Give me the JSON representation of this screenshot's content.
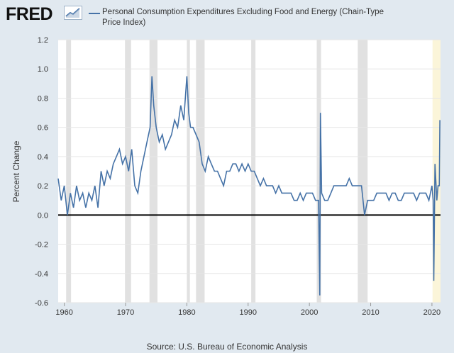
{
  "brand": {
    "logo_text": "FRED",
    "logo_icon": "chart-icon"
  },
  "legend": {
    "label": "Personal Consumption Expenditures Excluding Food and Energy (Chain-Type Price Index)",
    "color": "#4572a7"
  },
  "source": "Source: U.S. Bureau of Economic Analysis",
  "chart_data": {
    "type": "line",
    "title": "Personal Consumption Expenditures Excluding Food and Energy (Chain-Type Price Index)",
    "xlabel": "",
    "ylabel": "Percent Change",
    "xlim": [
      1959.0,
      2021.4
    ],
    "ylim": [
      -0.6,
      1.2
    ],
    "x_ticks": [
      1960,
      1970,
      1980,
      1990,
      2000,
      2010,
      2020
    ],
    "y_ticks": [
      -0.6,
      -0.4,
      -0.2,
      0.0,
      0.2,
      0.4,
      0.6,
      0.8,
      1.0,
      1.2
    ],
    "y_tick_labels": [
      "-0.6",
      "-0.4",
      "-0.2",
      "0.0",
      "0.2",
      "0.4",
      "0.6",
      "0.8",
      "1.0",
      "1.2"
    ],
    "zero_line": true,
    "recessions": [
      [
        1960.3,
        1961.1
      ],
      [
        1969.9,
        1970.9
      ],
      [
        1973.9,
        1975.2
      ],
      [
        1980.0,
        1980.5
      ],
      [
        1981.5,
        1982.9
      ],
      [
        1990.5,
        1991.2
      ],
      [
        2001.2,
        2001.9
      ],
      [
        2007.9,
        2009.5
      ]
    ],
    "forecast_band": [
      2020.1,
      2021.4
    ],
    "series": [
      {
        "name": "Personal Consumption Expenditures Excluding Food and Energy (Chain-Type Price Index)",
        "color": "#4572a7",
        "x": [
          1959.0,
          1959.5,
          1960.0,
          1960.5,
          1961.0,
          1961.5,
          1962.0,
          1962.5,
          1963.0,
          1963.5,
          1964.0,
          1964.5,
          1965.0,
          1965.5,
          1966.0,
          1966.5,
          1967.0,
          1967.5,
          1968.0,
          1968.5,
          1969.0,
          1969.5,
          1970.0,
          1970.5,
          1971.0,
          1971.5,
          1972.0,
          1972.5,
          1973.0,
          1973.5,
          1974.0,
          1974.3,
          1974.6,
          1975.0,
          1975.5,
          1976.0,
          1976.5,
          1977.0,
          1977.5,
          1978.0,
          1978.5,
          1979.0,
          1979.5,
          1980.0,
          1980.3,
          1980.6,
          1981.0,
          1981.5,
          1982.0,
          1982.5,
          1983.0,
          1983.5,
          1984.0,
          1984.5,
          1985.0,
          1985.5,
          1986.0,
          1986.5,
          1987.0,
          1987.5,
          1988.0,
          1988.5,
          1989.0,
          1989.5,
          1990.0,
          1990.5,
          1991.0,
          1991.5,
          1992.0,
          1992.5,
          1993.0,
          1993.5,
          1994.0,
          1994.5,
          1995.0,
          1995.5,
          1996.0,
          1996.5,
          1997.0,
          1997.5,
          1998.0,
          1998.5,
          1999.0,
          1999.5,
          2000.0,
          2000.5,
          2001.0,
          2001.5,
          2001.7,
          2001.8,
          2002.0,
          2002.5,
          2003.0,
          2003.5,
          2004.0,
          2004.5,
          2005.0,
          2005.5,
          2006.0,
          2006.5,
          2007.0,
          2007.5,
          2008.0,
          2008.5,
          2009.0,
          2009.5,
          2010.0,
          2010.5,
          2011.0,
          2011.5,
          2012.0,
          2012.5,
          2013.0,
          2013.5,
          2014.0,
          2014.5,
          2015.0,
          2015.5,
          2016.0,
          2016.5,
          2017.0,
          2017.5,
          2018.0,
          2018.5,
          2019.0,
          2019.5,
          2020.0,
          2020.2,
          2020.3,
          2020.5,
          2020.8,
          2021.0,
          2021.2,
          2021.3
        ],
        "values": [
          0.25,
          0.1,
          0.2,
          0.0,
          0.15,
          0.05,
          0.2,
          0.1,
          0.15,
          0.05,
          0.15,
          0.1,
          0.2,
          0.05,
          0.3,
          0.2,
          0.3,
          0.25,
          0.35,
          0.4,
          0.45,
          0.35,
          0.4,
          0.3,
          0.45,
          0.2,
          0.15,
          0.3,
          0.4,
          0.5,
          0.6,
          0.95,
          0.75,
          0.6,
          0.5,
          0.55,
          0.45,
          0.5,
          0.55,
          0.65,
          0.6,
          0.75,
          0.65,
          0.95,
          0.7,
          0.6,
          0.6,
          0.55,
          0.5,
          0.35,
          0.3,
          0.4,
          0.35,
          0.3,
          0.3,
          0.25,
          0.2,
          0.3,
          0.3,
          0.35,
          0.35,
          0.3,
          0.35,
          0.3,
          0.35,
          0.3,
          0.3,
          0.25,
          0.2,
          0.25,
          0.2,
          0.2,
          0.2,
          0.15,
          0.2,
          0.15,
          0.15,
          0.15,
          0.15,
          0.1,
          0.1,
          0.15,
          0.1,
          0.15,
          0.15,
          0.15,
          0.1,
          0.1,
          -0.55,
          0.7,
          0.15,
          0.1,
          0.1,
          0.15,
          0.2,
          0.2,
          0.2,
          0.2,
          0.2,
          0.25,
          0.2,
          0.2,
          0.2,
          0.2,
          0.0,
          0.1,
          0.1,
          0.1,
          0.15,
          0.15,
          0.15,
          0.15,
          0.1,
          0.15,
          0.15,
          0.1,
          0.1,
          0.15,
          0.15,
          0.15,
          0.15,
          0.1,
          0.15,
          0.15,
          0.15,
          0.1,
          0.2,
          0.1,
          -0.45,
          0.35,
          0.1,
          0.2,
          0.2,
          0.65
        ]
      }
    ]
  }
}
